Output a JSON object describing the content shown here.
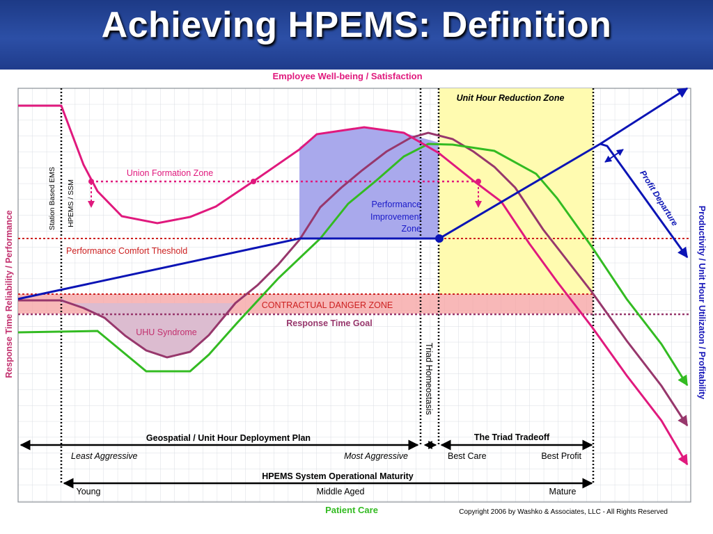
{
  "title": "Achieving HPEMS: Definition",
  "top_axis_label": "Employee Well-being / Satisfaction",
  "bottom_axis_label": "Patient Care",
  "left_axis_label": "Response Time Reliability / Performance",
  "right_axis_label": "Productivity / Unit Hour Utilizaton / Profitability",
  "labels": {
    "unit_hour_reduction_zone": "Unit Hour Reduction Zone",
    "union_formation_zone": "Union Formation Zone",
    "station_based_ems": "Station Based EMS",
    "hpems_ssm": "HPEMS / SSM",
    "performance_improvement_zone": [
      "Performance",
      "Improvement",
      "Zone"
    ],
    "performance_comfort_threshold": "Performance Comfort Theshold",
    "contractual_danger_zone": "CONTRACTUAL DANGER ZONE",
    "response_time_goal": "Response Time Goal",
    "uhu_syndrome": "UHU Syndrome",
    "triad_homeostasis": "Triad Homeostasis",
    "profit_departure": "Profit Departure"
  },
  "scales": {
    "deployment": {
      "title": "Geospatial / Unit Hour Deployment Plan",
      "left": "Least Aggressive",
      "right": "Most Aggressive"
    },
    "tradeoff": {
      "title": "The Triad Tradeoff",
      "left": "Best Care",
      "right": "Best Profit"
    },
    "maturity": {
      "title": "HPEMS System Operational Maturity",
      "left": "Young",
      "middle": "Middle Aged",
      "right": "Mature"
    }
  },
  "copyright": "Copyright 2006 by Washko & Associates, LLC - All Rights Reserved",
  "colors": {
    "title_bar": "#2a4ea3",
    "magenta": "#e0197d",
    "maroon": "#97376c",
    "green": "#33bb22",
    "brown": "#a0603a",
    "blue": "#0b14b5",
    "red_dotted": "#cc1f1f",
    "danger_band": "#f5a0a0",
    "yellow_zone": "#fffbb0",
    "performance_zone": "#a9a9ec",
    "uhu_fill": "#dcbcd0"
  }
}
